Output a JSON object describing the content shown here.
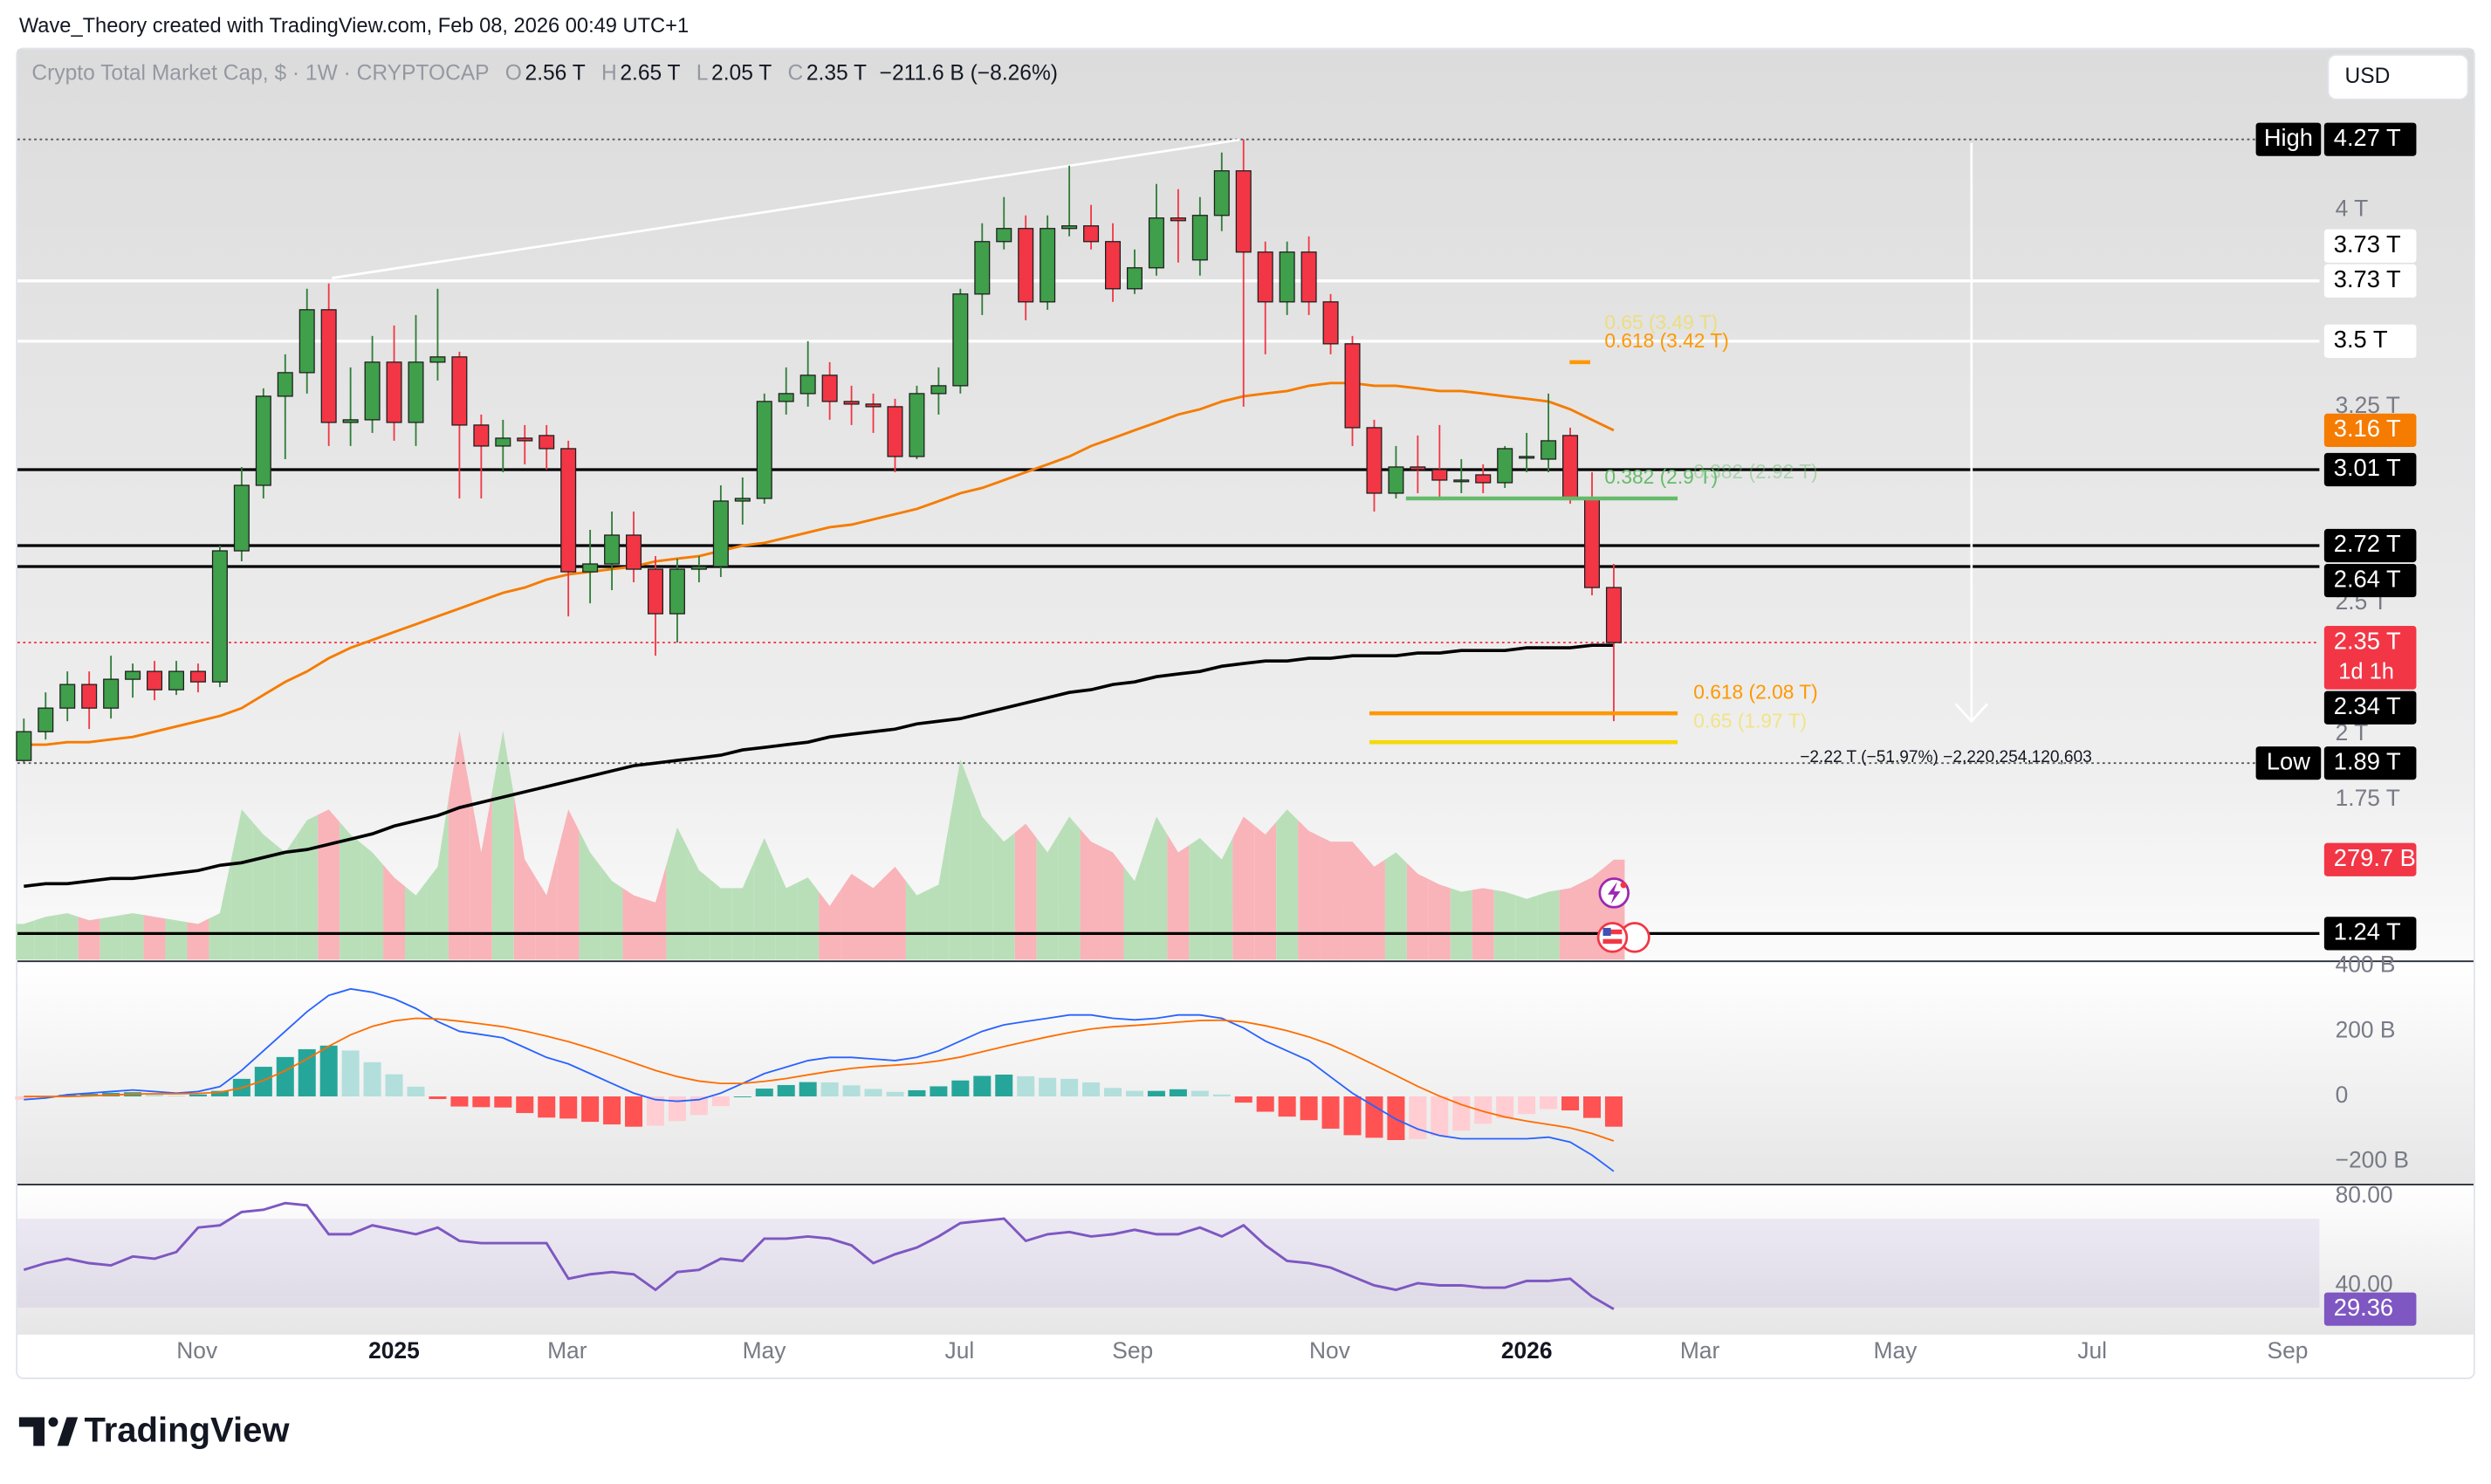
{
  "watermark": "Wave_Theory created with TradingView.com, Feb 08, 2026 00:49 UTC+1",
  "currency_button": "USD",
  "brand": "TradingView",
  "chart_data": {
    "type": "candlestick",
    "legend": {
      "symbol": "Crypto Total Market Cap, $ · 1W · CRYPTOCAP",
      "ohlc": [
        {
          "key": "O",
          "value": "2.56 T"
        },
        {
          "key": "H",
          "value": "2.65 T"
        },
        {
          "key": "L",
          "value": "2.05 T"
        },
        {
          "key": "C",
          "value": "2.35 T"
        }
      ],
      "change": "−211.6 B (−8.26%)"
    },
    "up_color": "#3f9f4a",
    "down_color": "#f23645",
    "ylim": [
      1.14,
      4.62
    ],
    "yticks": [
      {
        "value": 4,
        "label": "4 T"
      },
      {
        "value": 3.25,
        "label": "3.25 T"
      },
      {
        "value": 2.5,
        "label": "2.5 T"
      },
      {
        "value": 2,
        "label": "2 T"
      },
      {
        "value": 1.75,
        "label": "1.75 T"
      }
    ],
    "grid": false,
    "x_labels": [
      {
        "label": "Nov",
        "bold": false
      },
      {
        "label": "2025",
        "bold": true
      },
      {
        "label": "Mar",
        "bold": false
      },
      {
        "label": "May",
        "bold": false
      },
      {
        "label": "Jul",
        "bold": false
      },
      {
        "label": "Sep",
        "bold": false
      },
      {
        "label": "Nov",
        "bold": false
      },
      {
        "label": "2026",
        "bold": true
      },
      {
        "label": "Mar",
        "bold": false
      },
      {
        "label": "May",
        "bold": false
      },
      {
        "label": "Jul",
        "bold": false
      },
      {
        "label": "Sep",
        "bold": false
      }
    ],
    "candles": {
      "open": [
        1.9,
        2.01,
        2.1,
        2.19,
        2.1,
        2.21,
        2.24,
        2.17,
        2.24,
        2.2,
        2.7,
        2.95,
        3.29,
        3.38,
        3.62,
        3.19,
        3.2,
        3.42,
        3.19,
        3.42,
        3.44,
        3.18,
        3.1,
        3.13,
        3.14,
        3.09,
        2.62,
        2.65,
        2.76,
        2.63,
        2.46,
        2.63,
        2.64,
        2.89,
        2.9,
        3.27,
        3.3,
        3.37,
        3.27,
        3.26,
        3.25,
        3.06,
        3.3,
        3.33,
        3.68,
        3.88,
        3.93,
        3.65,
        3.93,
        3.94,
        3.88,
        3.7,
        3.78,
        3.97,
        3.81,
        3.98,
        4.15,
        3.84,
        3.65,
        3.84,
        3.65,
        3.49,
        3.17,
        2.92,
        3.02,
        3.01,
        2.97,
        2.99,
        2.96,
        3.06,
        3.05,
        3.14,
        2.9,
        2.56
      ],
      "high": [
        2.06,
        2.16,
        2.24,
        2.24,
        2.3,
        2.27,
        2.28,
        2.28,
        2.27,
        2.72,
        3.02,
        3.32,
        3.45,
        3.7,
        3.72,
        3.4,
        3.52,
        3.56,
        3.6,
        3.7,
        3.46,
        3.22,
        3.2,
        3.18,
        3.18,
        3.12,
        2.78,
        2.85,
        2.85,
        2.68,
        2.67,
        2.68,
        2.95,
        2.98,
        3.3,
        3.4,
        3.5,
        3.42,
        3.33,
        3.3,
        3.28,
        3.33,
        3.4,
        3.7,
        3.95,
        4.05,
        3.98,
        3.98,
        4.17,
        4.02,
        3.95,
        3.85,
        4.1,
        4.08,
        4.05,
        4.22,
        4.27,
        3.88,
        3.88,
        3.9,
        3.68,
        3.52,
        3.2,
        3.1,
        3.14,
        3.18,
        3.05,
        3.03,
        3.1,
        3.15,
        3.3,
        3.17,
        3.0,
        2.65
      ],
      "low": [
        1.89,
        1.98,
        2.05,
        2.02,
        2.06,
        2.14,
        2.13,
        2.15,
        2.16,
        2.18,
        2.66,
        2.9,
        3.05,
        3.3,
        3.1,
        3.1,
        3.15,
        3.12,
        3.1,
        3.35,
        2.9,
        2.9,
        3.0,
        3.03,
        3.01,
        2.45,
        2.5,
        2.55,
        2.58,
        2.3,
        2.35,
        2.58,
        2.6,
        2.8,
        2.88,
        3.22,
        3.25,
        3.2,
        3.18,
        3.15,
        3.0,
        3.05,
        3.22,
        3.3,
        3.6,
        3.85,
        3.58,
        3.62,
        3.9,
        3.85,
        3.65,
        3.68,
        3.75,
        3.8,
        3.75,
        3.92,
        3.25,
        3.45,
        3.6,
        3.6,
        3.45,
        3.1,
        2.85,
        2.9,
        2.92,
        2.9,
        2.92,
        2.92,
        2.94,
        3.0,
        3.0,
        2.88,
        2.53,
        2.05
      ],
      "close": [
        2.01,
        2.1,
        2.19,
        2.1,
        2.21,
        2.24,
        2.17,
        2.24,
        2.2,
        2.7,
        2.95,
        3.29,
        3.38,
        3.62,
        3.19,
        3.2,
        3.42,
        3.19,
        3.42,
        3.44,
        3.18,
        3.1,
        3.13,
        3.12,
        3.09,
        2.62,
        2.65,
        2.76,
        2.63,
        2.46,
        2.63,
        2.64,
        2.89,
        2.9,
        3.27,
        3.3,
        3.37,
        3.27,
        3.26,
        3.25,
        3.06,
        3.3,
        3.33,
        3.68,
        3.88,
        3.93,
        3.65,
        3.93,
        3.94,
        3.88,
        3.7,
        3.78,
        3.97,
        3.96,
        3.98,
        4.15,
        3.84,
        3.65,
        3.84,
        3.65,
        3.49,
        3.17,
        2.92,
        3.02,
        3.01,
        2.97,
        2.97,
        2.96,
        3.09,
        3.06,
        3.12,
        2.9,
        2.56,
        2.35
      ]
    },
    "moving_averages": [
      {
        "color": "#f57c00",
        "values": [
          1.96,
          1.96,
          1.97,
          1.97,
          1.98,
          1.99,
          2.01,
          2.03,
          2.05,
          2.07,
          2.1,
          2.15,
          2.2,
          2.24,
          2.29,
          2.33,
          2.36,
          2.39,
          2.42,
          2.45,
          2.48,
          2.51,
          2.54,
          2.56,
          2.59,
          2.61,
          2.62,
          2.63,
          2.64,
          2.66,
          2.67,
          2.68,
          2.7,
          2.72,
          2.73,
          2.75,
          2.77,
          2.79,
          2.8,
          2.82,
          2.84,
          2.86,
          2.89,
          2.92,
          2.94,
          2.97,
          3.0,
          3.03,
          3.06,
          3.1,
          3.13,
          3.16,
          3.19,
          3.22,
          3.24,
          3.27,
          3.29,
          3.3,
          3.31,
          3.33,
          3.34,
          3.34,
          3.33,
          3.33,
          3.32,
          3.31,
          3.31,
          3.3,
          3.29,
          3.28,
          3.27,
          3.24,
          3.2,
          3.16
        ]
      },
      {
        "color": "#000000",
        "values": [
          1.42,
          1.43,
          1.43,
          1.44,
          1.45,
          1.45,
          1.46,
          1.47,
          1.48,
          1.5,
          1.51,
          1.53,
          1.55,
          1.56,
          1.58,
          1.6,
          1.62,
          1.65,
          1.67,
          1.69,
          1.72,
          1.74,
          1.76,
          1.78,
          1.8,
          1.82,
          1.84,
          1.86,
          1.88,
          1.89,
          1.9,
          1.91,
          1.92,
          1.94,
          1.95,
          1.96,
          1.97,
          1.99,
          2.0,
          2.01,
          2.02,
          2.04,
          2.05,
          2.06,
          2.08,
          2.1,
          2.12,
          2.14,
          2.16,
          2.17,
          2.19,
          2.2,
          2.22,
          2.23,
          2.24,
          2.26,
          2.27,
          2.28,
          2.28,
          2.29,
          2.29,
          2.3,
          2.3,
          2.3,
          2.31,
          2.31,
          2.32,
          2.32,
          2.32,
          2.33,
          2.33,
          2.33,
          2.34,
          2.34
        ]
      }
    ],
    "volume": {
      "up_color": "#b9dfb9",
      "down_color": "#f8b4b9",
      "ylim": [
        0,
        2550
      ],
      "values": [
        100,
        120,
        130,
        110,
        120,
        130,
        120,
        110,
        100,
        130,
        420,
        350,
        300,
        390,
        420,
        350,
        300,
        230,
        180,
        260,
        640,
        300,
        640,
        280,
        180,
        420,
        300,
        220,
        180,
        160,
        370,
        250,
        200,
        200,
        340,
        200,
        230,
        150,
        240,
        200,
        260,
        180,
        210,
        560,
        400,
        330,
        380,
        300,
        400,
        330,
        300,
        220,
        400,
        300,
        340,
        280,
        400,
        350,
        420,
        360,
        330,
        330,
        260,
        300,
        240,
        210,
        190,
        200,
        190,
        170,
        190,
        200,
        230,
        279.7
      ]
    },
    "price_labels": [
      {
        "value": 4.27,
        "label": "4.27 T",
        "tag": "High",
        "color": "#000000",
        "text_color": "#ffffff",
        "line": "dotted",
        "line_color": "#555555"
      },
      {
        "value": 3.73,
        "label": "3.73 T",
        "color": "#ffffff",
        "text_color": "#000000",
        "line": "solid",
        "line_color": "#ffffff"
      },
      {
        "value": 3.73,
        "label": "3.73 T",
        "color": "#ffffff",
        "text_color": "#000000",
        "line": "solid",
        "line_color": "#ffffff"
      },
      {
        "value": 3.5,
        "label": "3.5 T",
        "color": "#ffffff",
        "text_color": "#000000",
        "line": "solid",
        "line_color": "#ffffff"
      },
      {
        "value": 3.16,
        "label": "3.16 T",
        "color": "#f57c00",
        "text_color": "#ffffff",
        "line": "none"
      },
      {
        "value": 3.01,
        "label": "3.01 T",
        "color": "#000000",
        "text_color": "#ffffff",
        "line": "solid",
        "line_color": "#000000"
      },
      {
        "value": 2.72,
        "label": "2.72 T",
        "color": "#000000",
        "text_color": "#ffffff",
        "line": "solid",
        "line_color": "#000000"
      },
      {
        "value": 2.64,
        "label": "2.64 T",
        "color": "#000000",
        "text_color": "#ffffff",
        "line": "solid",
        "line_color": "#000000"
      },
      {
        "value": 2.35,
        "label": "2.35 T",
        "countdown": "1d 1h",
        "color": "#f23645",
        "text_color": "#ffffff",
        "line": "dotted",
        "line_color": "#f23645"
      },
      {
        "value": 2.34,
        "label": "2.34 T",
        "color": "#000000",
        "text_color": "#ffffff",
        "line": "none"
      },
      {
        "value": 1.89,
        "label": "1.89 T",
        "tag": "Low",
        "color": "#000000",
        "text_color": "#ffffff",
        "line": "dotted",
        "line_color": "#555555"
      },
      {
        "value": 279.7,
        "label": "279.7 B",
        "scale": "volume",
        "color": "#f23645",
        "text_color": "#ffffff",
        "line": "none"
      },
      {
        "value": 1.24,
        "label": "1.24 T",
        "color": "#000000",
        "text_color": "#ffffff",
        "line": "solid",
        "line_color": "#000000"
      }
    ],
    "fibs": [
      {
        "text": "0.65 (3.49 T)",
        "value": 3.49,
        "color": "#f5d90a",
        "faded": true
      },
      {
        "text": "0.618 (3.42 T)",
        "value": 3.42,
        "color": "#ff9800",
        "faded": false
      },
      {
        "text": "0.382 (2.9 T)",
        "value": 2.9,
        "color": "#66bb6a",
        "faded": false
      },
      {
        "text": "0.382 (2.92 T)",
        "value": 2.92,
        "color": "#66bb6a",
        "faded": true
      },
      {
        "text": "0.618 (2.08 T)",
        "value": 2.08,
        "color": "#ff9800",
        "faded": false
      },
      {
        "text": "0.65 (1.97 T)",
        "value": 1.97,
        "color": "#f5d90a",
        "faded": true
      }
    ],
    "measure": "−2.22 T (−51.97%) −2,220,254,120,603",
    "macd": {
      "ylim": [
        -268,
        415
      ],
      "macd_color": "#2962ff",
      "signal_color": "#ff6d00",
      "yticks": [
        {
          "value": 400,
          "label": "400 B"
        },
        {
          "value": 200,
          "label": "200 B"
        },
        0,
        {
          "value": -200,
          "label": "−200 B"
        }
      ],
      "macd": [
        -10,
        -5,
        5,
        10,
        15,
        20,
        15,
        10,
        15,
        30,
        80,
        140,
        200,
        260,
        310,
        330,
        320,
        300,
        270,
        230,
        200,
        190,
        180,
        150,
        120,
        100,
        70,
        40,
        10,
        -10,
        -15,
        -10,
        10,
        40,
        70,
        90,
        110,
        120,
        120,
        115,
        110,
        120,
        140,
        170,
        200,
        220,
        230,
        240,
        250,
        250,
        240,
        235,
        240,
        250,
        250,
        240,
        210,
        170,
        140,
        110,
        60,
        10,
        -30,
        -70,
        -100,
        -120,
        -130,
        -130,
        -130,
        -130,
        -125,
        -140,
        -180,
        -230
      ],
      "signal": [
        0,
        0,
        0,
        2,
        4,
        7,
        8,
        8,
        9,
        13,
        26,
        49,
        79,
        115,
        154,
        189,
        215,
        232,
        240,
        238,
        231,
        223,
        214,
        201,
        185,
        168,
        148,
        126,
        103,
        80,
        61,
        47,
        40,
        40,
        46,
        55,
        66,
        77,
        86,
        92,
        96,
        101,
        109,
        121,
        137,
        153,
        168,
        183,
        196,
        207,
        214,
        218,
        223,
        228,
        233,
        234,
        229,
        217,
        202,
        183,
        159,
        129,
        97,
        64,
        31,
        1,
        -25,
        -46,
        -63,
        -76,
        -86,
        -97,
        -114,
        -137
      ],
      "histogram": [
        -10,
        -5,
        5,
        8,
        11,
        13,
        7,
        2,
        6,
        17,
        54,
        91,
        121,
        145,
        156,
        141,
        105,
        68,
        30,
        -8,
        -31,
        -33,
        -34,
        -51,
        -65,
        -68,
        -78,
        -86,
        -93,
        -90,
        -76,
        -57,
        -30,
        0,
        24,
        35,
        44,
        43,
        34,
        23,
        14,
        19,
        31,
        49,
        63,
        67,
        62,
        57,
        54,
        43,
        26,
        17,
        17,
        22,
        17,
        6,
        -19,
        -47,
        -62,
        -73,
        -99,
        -119,
        -127,
        -134,
        -131,
        -121,
        -105,
        -84,
        -67,
        -54,
        -39,
        -43,
        -66,
        -93
      ]
    },
    "rsi": {
      "ylim": [
        17.9,
        85.7
      ],
      "color": "#7e57c2",
      "band": [
        30,
        70
      ],
      "last_label": "29.36",
      "yticks": [
        {
          "value": 80,
          "label": "80.00"
        },
        {
          "value": 40,
          "label": "40.00"
        }
      ],
      "values": [
        47,
        50,
        52,
        50,
        49,
        53,
        52,
        55,
        66,
        67,
        73,
        74,
        77,
        76,
        63,
        63,
        67,
        65,
        63,
        66,
        60,
        59,
        59,
        59,
        59,
        43,
        45,
        46,
        45,
        38,
        46,
        47,
        52,
        51,
        61,
        61,
        62,
        61,
        58,
        50,
        54,
        57,
        62,
        68,
        69,
        70,
        60,
        63,
        64,
        62,
        63,
        65,
        63,
        63,
        66,
        62,
        67,
        58,
        51,
        50,
        48,
        44,
        40,
        38,
        41,
        40,
        40,
        39,
        39,
        42,
        42,
        43,
        35,
        29.36
      ]
    }
  }
}
